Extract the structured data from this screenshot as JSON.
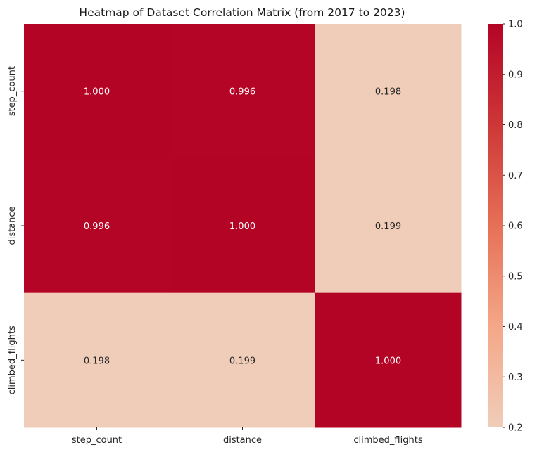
{
  "chart_data": {
    "type": "heatmap",
    "title": "Heatmap of Dataset Correlation Matrix (from 2017 to 2023)",
    "x_categories": [
      "step_count",
      "distance",
      "climbed_flights"
    ],
    "y_categories": [
      "step_count",
      "distance",
      "climbed_flights"
    ],
    "values": [
      [
        1.0,
        0.996,
        0.198
      ],
      [
        0.996,
        1.0,
        0.199
      ],
      [
        0.198,
        0.199,
        1.0
      ]
    ],
    "value_labels": [
      [
        "1.000",
        "0.996",
        "0.198"
      ],
      [
        "0.996",
        "1.000",
        "0.199"
      ],
      [
        "0.198",
        "0.199",
        "1.000"
      ]
    ],
    "colormap": "coolwarm",
    "colorbar": {
      "range": [
        0.2,
        1.0
      ],
      "ticks": [
        0.2,
        0.3,
        0.4,
        0.5,
        0.6,
        0.7,
        0.8,
        0.9,
        1.0
      ],
      "tick_labels": [
        "0.2",
        "0.3",
        "0.4",
        "0.5",
        "0.6",
        "0.7",
        "0.8",
        "0.9",
        "1.0"
      ],
      "placement": "right"
    }
  }
}
